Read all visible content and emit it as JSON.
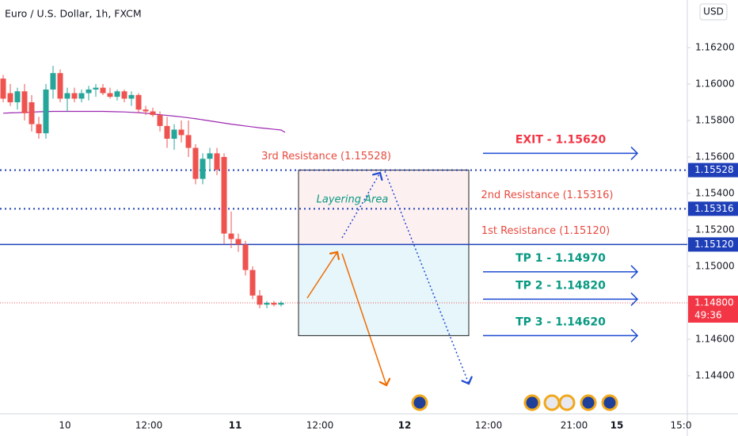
{
  "chart_data": {
    "type": "candlestick",
    "title": "Euro / U.S. Dollar, 1h, FXCM",
    "currency": "USD",
    "x_labels": [
      "10",
      "12:00",
      "11",
      "12:00",
      "12",
      "12:00",
      "21:00",
      "15",
      "15:0"
    ],
    "ylim": [
      1.142,
      1.16461
    ],
    "yticks": [
      {
        "value": 1.162,
        "label": "1.16200"
      },
      {
        "value": 1.16,
        "label": "1.16000"
      },
      {
        "value": 1.158,
        "label": "1.15800"
      },
      {
        "value": 1.156,
        "label": "1.15600"
      },
      {
        "value": 1.154,
        "label": "1.15400"
      },
      {
        "value": 1.152,
        "label": "1.15200"
      },
      {
        "value": 1.15,
        "label": "1.15000"
      },
      {
        "value": 1.146,
        "label": "1.14600"
      },
      {
        "value": 1.144,
        "label": "1.14400"
      }
    ],
    "up_color": "#26a69a",
    "down_color": "#ef5350",
    "candles": {
      "open": [
        1.1603,
        1.1595,
        1.159,
        1.1596,
        1.159,
        1.1578,
        1.1573,
        1.1597,
        1.1606,
        1.1592,
        1.1595,
        1.1592,
        1.1595,
        1.1597,
        1.1598,
        1.1595,
        1.1593,
        1.1596,
        1.1592,
        1.1594,
        1.1586,
        1.1585,
        1.1583,
        1.1577,
        1.157,
        1.1575,
        1.1572,
        1.1565,
        1.1548,
        1.1559,
        1.1562,
        1.156,
        1.1518,
        1.1515,
        1.1512,
        1.1498,
        1.1484,
        1.1479,
        1.148,
        1.1479
      ],
      "high": [
        1.1605,
        1.16,
        1.1598,
        1.16,
        1.1594,
        1.1582,
        1.16,
        1.161,
        1.1608,
        1.1598,
        1.1598,
        1.1597,
        1.1599,
        1.16,
        1.16,
        1.1598,
        1.1597,
        1.1597,
        1.1596,
        1.1595,
        1.1588,
        1.1587,
        1.1585,
        1.1582,
        1.1578,
        1.158,
        1.158,
        1.1567,
        1.1562,
        1.1565,
        1.1565,
        1.1562,
        1.153,
        1.1518,
        1.1514,
        1.15,
        1.1487,
        1.1481,
        1.1481,
        1.1481
      ],
      "low": [
        1.159,
        1.1588,
        1.1586,
        1.158,
        1.1574,
        1.157,
        1.157,
        1.1592,
        1.159,
        1.1585,
        1.159,
        1.159,
        1.1591,
        1.1593,
        1.1594,
        1.1592,
        1.1591,
        1.159,
        1.1588,
        1.1584,
        1.1583,
        1.1582,
        1.1574,
        1.1565,
        1.1564,
        1.1568,
        1.156,
        1.1545,
        1.1545,
        1.1552,
        1.155,
        1.1512,
        1.151,
        1.1508,
        1.1495,
        1.1482,
        1.1477,
        1.1477,
        1.1478,
        1.1478
      ],
      "close": [
        1.1592,
        1.159,
        1.1596,
        1.1584,
        1.1578,
        1.1573,
        1.1597,
        1.1606,
        1.1592,
        1.1595,
        1.1592,
        1.1595,
        1.1597,
        1.1598,
        1.1595,
        1.1593,
        1.1596,
        1.1592,
        1.1594,
        1.1586,
        1.1585,
        1.1583,
        1.1577,
        1.157,
        1.1575,
        1.1572,
        1.1565,
        1.1548,
        1.1559,
        1.1562,
        1.1553,
        1.1518,
        1.1515,
        1.1512,
        1.1498,
        1.1484,
        1.1479,
        1.148,
        1.1479,
        1.148
      ]
    },
    "ma": {
      "color": "#9c27b0",
      "values": [
        1.1584,
        1.15842,
        1.15843,
        1.15845,
        1.15846,
        1.15848,
        1.15849,
        1.1585,
        1.1585,
        1.1585,
        1.1585,
        1.1585,
        1.1585,
        1.1585,
        1.1585,
        1.15849,
        1.15848,
        1.15847,
        1.15845,
        1.15843,
        1.1584,
        1.15836,
        1.15832,
        1.15828,
        1.15824,
        1.1582,
        1.15815,
        1.1581,
        1.15804,
        1.15798,
        1.15792,
        1.15786,
        1.1578,
        1.15775,
        1.1577,
        1.15765,
        1.1576,
        1.15756,
        1.15752,
        1.15748
      ]
    },
    "levels": [
      {
        "value": 1.15528,
        "label": "1.15528",
        "name": "3rd Resistance (1.15528)",
        "style": "dotted"
      },
      {
        "value": 1.15316,
        "label": "1.15316",
        "name": "2nd Resistance (1.15316)",
        "style": "dotted"
      },
      {
        "value": 1.1512,
        "label": "1.15120",
        "name": "1st Resistance (1.15120)",
        "style": "solid"
      }
    ],
    "current": {
      "value": 1.148,
      "label": "1.14800",
      "countdown": "49:36"
    },
    "targets": [
      {
        "value": 1.1562,
        "label": "EXIT - 1.15620",
        "color": "#f23645"
      },
      {
        "value": 1.1497,
        "label": "TP 1 - 1.14970",
        "color": "#089981"
      },
      {
        "value": 1.1482,
        "label": "TP 2 - 1.14820",
        "color": "#089981"
      },
      {
        "value": 1.1462,
        "label": "TP 3 - 1.14620",
        "color": "#089981"
      }
    ],
    "annotation": "Layering Area"
  }
}
